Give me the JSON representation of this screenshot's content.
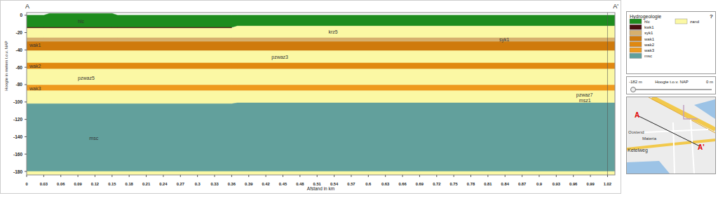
{
  "chart_data": {
    "type": "area",
    "title_left": "A",
    "title_right": "A'",
    "x_label": "Afstand in km",
    "y_label": "Hoogte in meters t.o.v. NAP",
    "xlim": [
      0,
      1.033
    ],
    "ylim": [
      -184,
      3
    ],
    "xticks": [
      0,
      0.03,
      0.06,
      0.09,
      0.12,
      0.15,
      0.18,
      0.21,
      0.24,
      0.27,
      0.3,
      0.33,
      0.36,
      0.39,
      0.42,
      0.45,
      0.48,
      0.51,
      0.54,
      0.57,
      0.6,
      0.63,
      0.66,
      0.69,
      0.72,
      0.75,
      0.78,
      0.81,
      0.84,
      0.87,
      0.9,
      0.93,
      0.96,
      0.99,
      1.02
    ],
    "yticks": [
      0,
      -20,
      -40,
      -60,
      -80,
      -100,
      -120,
      -140,
      -160,
      -180
    ],
    "x": [
      0,
      0.03,
      0.04,
      0.15,
      0.16,
      0.36,
      0.37,
      1.033
    ],
    "layers": [
      {
        "label": "hlc",
        "color": "#1e8c1e",
        "label_x": 0.09,
        "label_y": -7,
        "top": [
          0,
          0,
          2,
          2,
          0,
          0,
          0,
          0
        ],
        "bottom": [
          -14,
          -14,
          -14,
          -14,
          -14,
          -14,
          -12.5,
          -12.5
        ]
      },
      {
        "color": "#4a1010",
        "top": [
          -14,
          -14,
          -14,
          -14,
          -14,
          -14,
          null,
          null
        ],
        "bottom": [
          -15,
          -15,
          -15,
          -15,
          -15,
          -15,
          null,
          null
        ]
      },
      {
        "label": "krz5",
        "color": "#fbf8a4",
        "label_x": 0.53,
        "label_y": -19,
        "top": [
          -15,
          -15,
          -15,
          -15,
          -15,
          -15,
          -12.5,
          -12.5
        ],
        "bottom": [
          -26,
          -26,
          -26,
          -26,
          -26,
          -26,
          -26,
          -26
        ]
      },
      {
        "label": "syk1",
        "color": "#d6b06e",
        "label_x": 0.83,
        "label_y": -28,
        "top": [
          -26,
          -26,
          -26,
          -26,
          -26,
          -26,
          -26,
          -26
        ],
        "bottom": [
          -30.5,
          -30.5,
          -30.5,
          -30.5,
          -30.5,
          -30.5,
          -30.5,
          -30.5
        ]
      },
      {
        "label": "wak1",
        "color": "#cf7a0c",
        "label_x": 0.005,
        "label_y": -34,
        "top": [
          -30.5,
          -30.5,
          -30.5,
          -30.5,
          -30.5,
          -30.5,
          -30.5,
          -30.5
        ],
        "bottom": [
          -41,
          -41,
          -41,
          -41,
          -41,
          -41,
          -41,
          -41
        ]
      },
      {
        "label": "pzwaz3",
        "color": "#fbf8a4",
        "label_x": 0.43,
        "label_y": -48,
        "top": [
          -41,
          -41,
          -41,
          -41,
          -41,
          -41,
          -41,
          -41
        ],
        "bottom": [
          -55,
          -55,
          -55,
          -55,
          -55,
          -55,
          -55,
          -55
        ]
      },
      {
        "label": "wak2",
        "color": "#e08810",
        "label_x": 0.005,
        "label_y": -58,
        "top": [
          -55,
          -55,
          -55,
          -55,
          -55,
          -55,
          -55,
          -55
        ],
        "bottom": [
          -62,
          -62,
          -62,
          -62,
          -62,
          -62,
          -62,
          -62
        ]
      },
      {
        "label": "pzwaz5",
        "color": "#fbf8a4",
        "label_x": 0.09,
        "label_y": -72,
        "top": [
          -62,
          -62,
          -62,
          -62,
          -62,
          -62,
          -62,
          -62
        ],
        "bottom": [
          -80.5,
          -80.5,
          -80.5,
          -80.5,
          -80.5,
          -80.5,
          -80.5,
          -80.5
        ]
      },
      {
        "label": "wak3",
        "color": "#ee9a1e",
        "label_x": 0.005,
        "label_y": -84,
        "top": [
          -80.5,
          -80.5,
          -80.5,
          -80.5,
          -80.5,
          -80.5,
          -80.5,
          -80.5
        ],
        "bottom": [
          -87,
          -87,
          -87,
          -87,
          -87,
          -87,
          -87,
          -87
        ]
      },
      {
        "label": "pzwaz7",
        "color": "#fbf8a4",
        "label_x": 0.965,
        "label_y": -91,
        "top": [
          -87,
          -87,
          -87,
          -87,
          -87,
          -87,
          -87,
          -87
        ],
        "bottom": [
          -102,
          -102,
          -102,
          -102,
          -102,
          -102,
          -101,
          -101
        ]
      },
      {
        "label": "msc",
        "color": "#62a09c",
        "label_x": 0.11,
        "label_y": -141,
        "top": [
          -102,
          -102,
          -102,
          -102,
          -102,
          -102,
          -101,
          -101
        ],
        "bottom": [
          -180,
          -180,
          -180,
          -180,
          -180,
          -180,
          -180,
          -180
        ]
      },
      {
        "color": "#fbf8a4",
        "top": [
          -180,
          -180,
          -180,
          -180,
          -180,
          -180,
          -180,
          -180
        ],
        "bottom": [
          -184,
          -184,
          -184,
          -184,
          -184,
          -184,
          -184,
          -184
        ]
      }
    ],
    "annotations": [
      {
        "text": "msz1",
        "x": 0.97,
        "y": -98
      }
    ],
    "legend_title": "Hydrogeologie",
    "legend_help": "?",
    "legend_items": [
      {
        "name": "hlc",
        "color": "#1e8c1e"
      },
      {
        "name": "kwk1",
        "color": "#4a1010"
      },
      {
        "name": "syk1",
        "color": "#d6b06e"
      },
      {
        "name": "wak1",
        "color": "#cf7a0c"
      },
      {
        "name": "wak2",
        "color": "#e08810"
      },
      {
        "name": "wak3",
        "color": "#ee9a1e"
      },
      {
        "name": "msc",
        "color": "#62a09c"
      },
      {
        "name": "zand",
        "color": "#fbf8a4"
      }
    ],
    "slider": {
      "min_label": "-182 m",
      "label": "Hoogte t.o.v. NAP",
      "max_label": "0 m"
    },
    "map_labels": [
      "A",
      "A'",
      "Oostend",
      "Materia",
      "Ketelweg"
    ]
  }
}
